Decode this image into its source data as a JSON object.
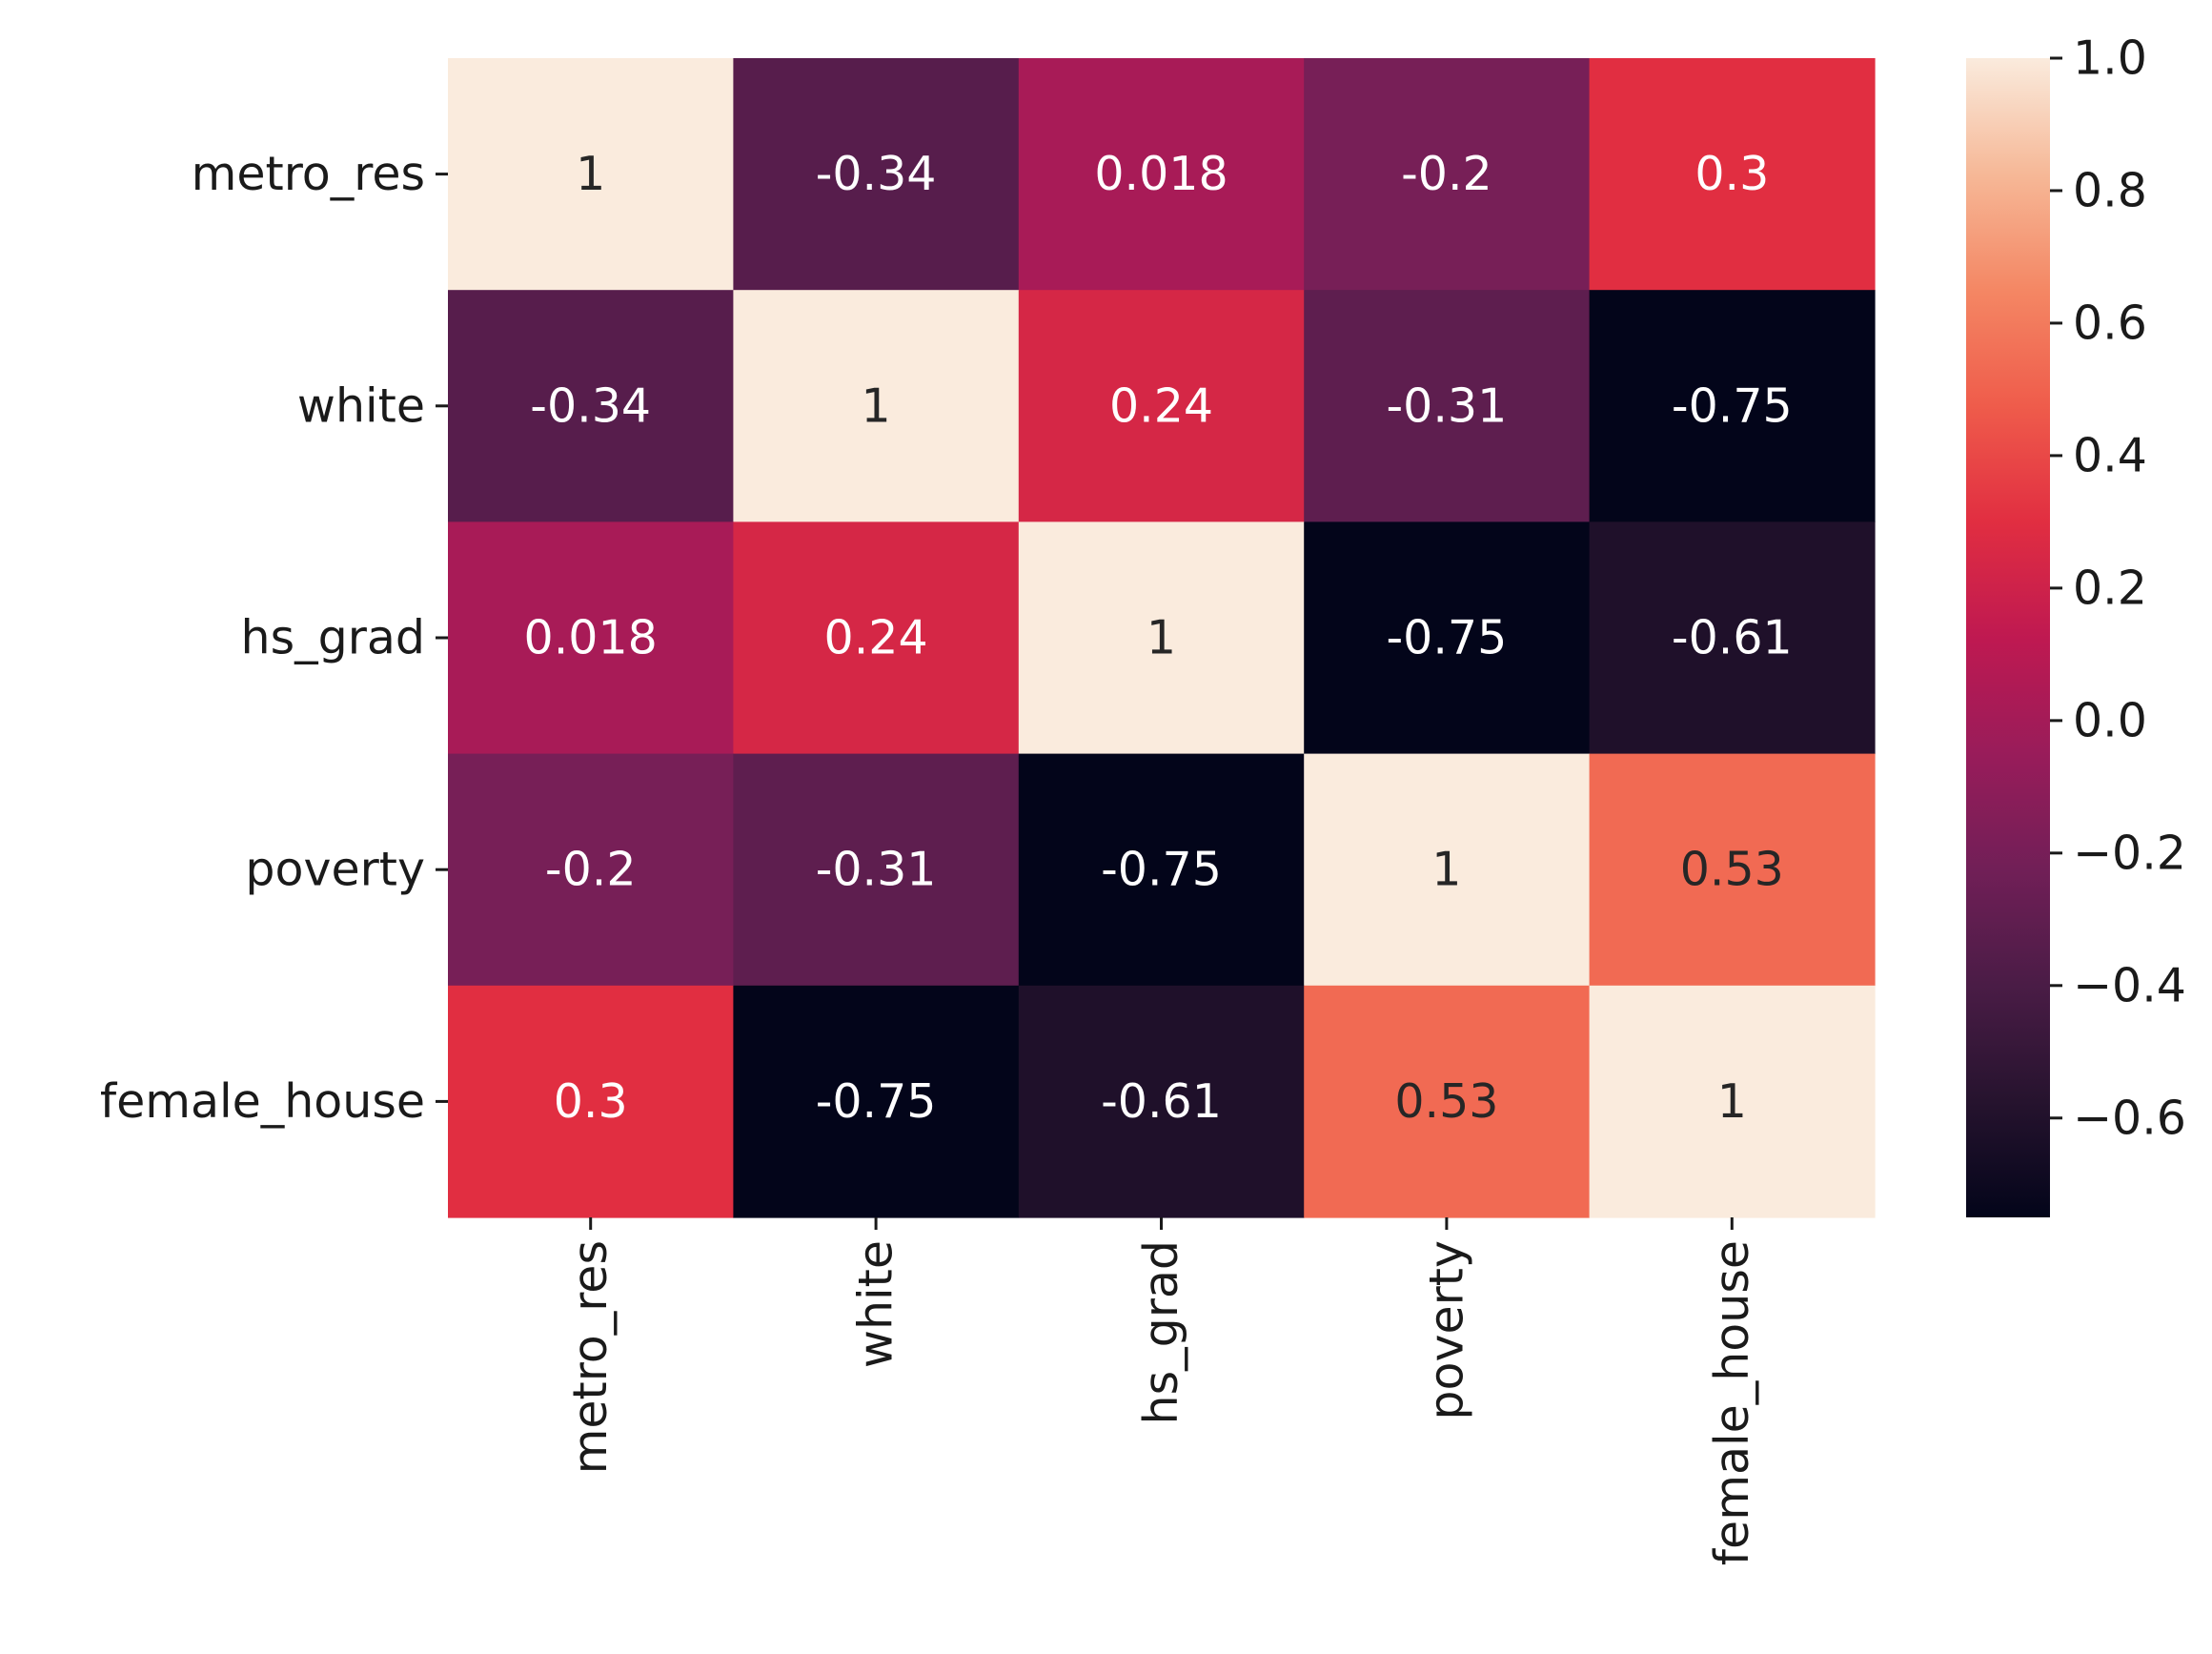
{
  "chart_data": {
    "type": "heatmap",
    "title": "",
    "xlabel": "",
    "ylabel": "",
    "x_categories": [
      "metro_res",
      "white",
      "hs_grad",
      "poverty",
      "female_house"
    ],
    "y_categories": [
      "metro_res",
      "white",
      "hs_grad",
      "poverty",
      "female_house"
    ],
    "values": [
      [
        1,
        -0.34,
        0.018,
        -0.2,
        0.3
      ],
      [
        -0.34,
        1,
        0.24,
        -0.31,
        -0.75
      ],
      [
        0.018,
        0.24,
        1,
        -0.75,
        -0.61
      ],
      [
        -0.2,
        -0.31,
        -0.75,
        1,
        0.53
      ],
      [
        0.3,
        -0.75,
        -0.61,
        0.53,
        1
      ]
    ],
    "annotations": [
      [
        "1",
        "-0.34",
        "0.018",
        "-0.2",
        "0.3"
      ],
      [
        "-0.34",
        "1",
        "0.24",
        "-0.31",
        "-0.75"
      ],
      [
        "0.018",
        "0.24",
        "1",
        "-0.75",
        "-0.61"
      ],
      [
        "-0.2",
        "-0.31",
        "-0.75",
        "1",
        "0.53"
      ],
      [
        "0.3",
        "-0.75",
        "-0.61",
        "0.53",
        "1"
      ]
    ],
    "colorbar": {
      "colormap": "rocket",
      "range": [
        -0.75,
        1.0
      ],
      "ticks": [
        1.0,
        0.8,
        0.6,
        0.4,
        0.2,
        0.0,
        -0.2,
        -0.4,
        -0.6
      ],
      "tick_labels": [
        "1.0",
        "0.8",
        "0.6",
        "0.4",
        "0.2",
        "0.0",
        "−0.2",
        "−0.4",
        "−0.6"
      ]
    },
    "grid": false,
    "legend": "colorbar-right"
  }
}
